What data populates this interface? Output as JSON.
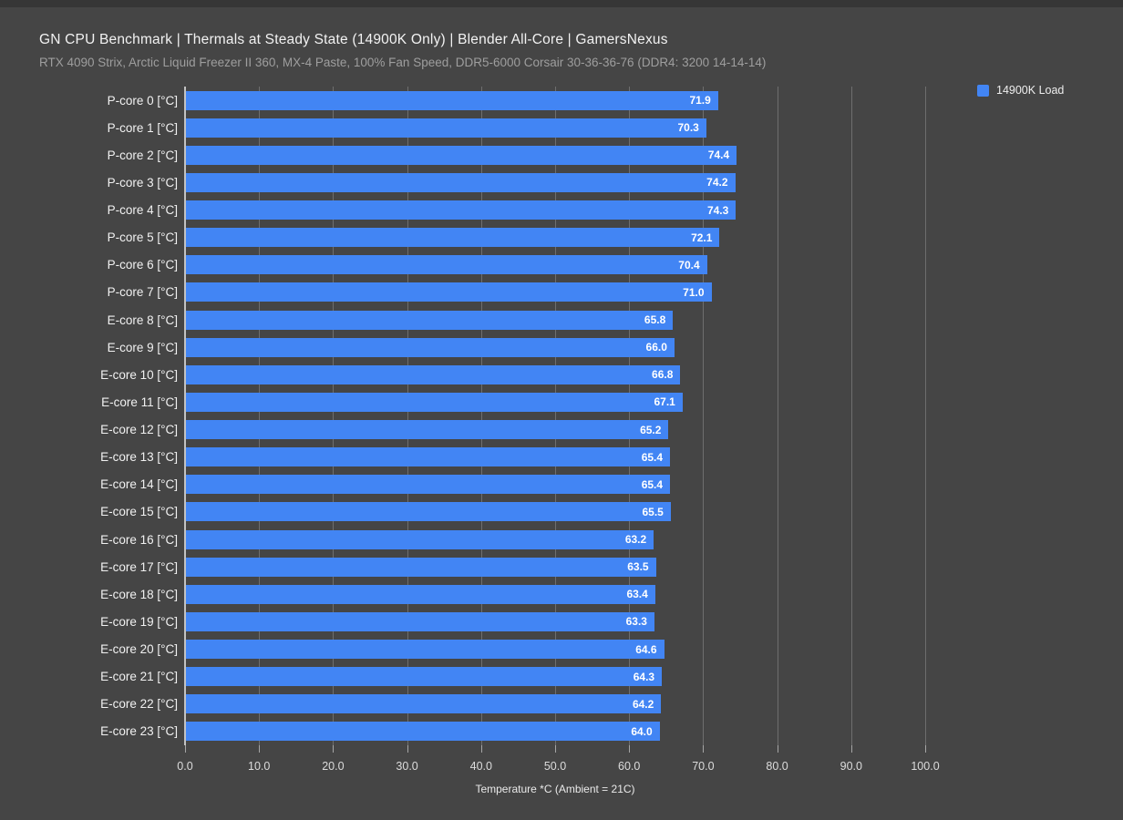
{
  "chart_data": {
    "type": "bar",
    "orientation": "horizontal",
    "title": "GN CPU Benchmark | Thermals at Steady State (14900K Only) | Blender All-Core | GamersNexus",
    "subtitle": "RTX 4090 Strix, Arctic Liquid Freezer II 360, MX-4 Paste, 100% Fan Speed, DDR5-6000 Corsair 30-36-36-76 (DDR4: 3200 14-14-14)",
    "categories": [
      "P-core 0 [°C]",
      "P-core 1 [°C]",
      "P-core 2 [°C]",
      "P-core 3 [°C]",
      "P-core 4 [°C]",
      "P-core 5 [°C]",
      "P-core 6 [°C]",
      "P-core 7 [°C]",
      "E-core 8 [°C]",
      "E-core 9 [°C]",
      "E-core 10 [°C]",
      "E-core 11 [°C]",
      "E-core 12 [°C]",
      "E-core 13 [°C]",
      "E-core 14 [°C]",
      "E-core 15 [°C]",
      "E-core 16 [°C]",
      "E-core 17 [°C]",
      "E-core 18 [°C]",
      "E-core 19 [°C]",
      "E-core 20 [°C]",
      "E-core 21 [°C]",
      "E-core 22 [°C]",
      "E-core 23 [°C]"
    ],
    "series": [
      {
        "name": "14900K Load",
        "color": "#4285F4",
        "values": [
          71.9,
          70.3,
          74.4,
          74.2,
          74.3,
          72.1,
          70.4,
          71.0,
          65.8,
          66.0,
          66.8,
          67.1,
          65.2,
          65.4,
          65.4,
          65.5,
          63.2,
          63.5,
          63.4,
          63.3,
          64.6,
          64.3,
          64.2,
          64.0
        ]
      }
    ],
    "xlabel": "Temperature *C (Ambient = 21C)",
    "xlim": [
      0,
      100
    ],
    "xticks": [
      0,
      10,
      20,
      30,
      40,
      50,
      60,
      70,
      80,
      90,
      100
    ],
    "xtick_format_decimals": 1,
    "value_label_decimals": 1,
    "grid": true,
    "legend_position": "top-right"
  },
  "colors": {
    "background": "#454545",
    "bar": "#4285F4",
    "gridline": "#6e6e6e",
    "axis_line": "#c2c2c2"
  }
}
